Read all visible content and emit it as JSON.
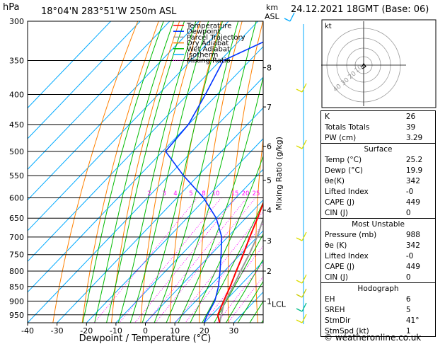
{
  "header": {
    "hpa_label": "hPa",
    "location": "18°04'N 283°51'W 250m ASL",
    "km_label": "km",
    "asl_label": "ASL",
    "date": "24.12.2021 18GMT (Base: 06)"
  },
  "chart_data": {
    "type": "line",
    "chart_kind": "Skew-T log-P",
    "xlabel": "Dewpoint / Temperature (°C)",
    "ylabel_right": "Mixing Ratio (g/kg)",
    "xlim": [
      -40,
      40
    ],
    "x_ticks": [
      -40,
      -30,
      -20,
      -10,
      0,
      10,
      20,
      30
    ],
    "pressure_levels": [
      300,
      350,
      400,
      450,
      500,
      550,
      600,
      650,
      700,
      750,
      800,
      850,
      900,
      950
    ],
    "pressure_range": [
      300,
      980
    ],
    "height_km_ticks": [
      {
        "label": "8",
        "p": 360
      },
      {
        "label": "7",
        "p": 420
      },
      {
        "label": "6",
        "p": 490
      },
      {
        "label": "5",
        "p": 560
      },
      {
        "label": "4",
        "p": 630
      },
      {
        "label": "3",
        "p": 710
      },
      {
        "label": "2",
        "p": 800
      },
      {
        "label": "1",
        "p": 900
      }
    ],
    "lcl": {
      "label": "LCL",
      "p": 910
    },
    "mixing_ratio_labels": [
      "1",
      "2",
      "3",
      "4",
      "5",
      "8",
      "10",
      "15",
      "20",
      "25"
    ],
    "legend": [
      "Temperature",
      "Dewpoint",
      "Parcel Trajectory",
      "Dry Adiabat",
      "Wet Adiabat",
      "Isotherm",
      "Mixing Ratio"
    ],
    "legend_position": "top-left",
    "colors": {
      "temperature": "#ff0000",
      "dewpoint": "#0033ff",
      "parcel": "#999999",
      "dry_adiabat": "#ff8000",
      "wet_adiabat": "#00bb00",
      "isotherm": "#00aaff",
      "mixing_ratio": "#ff00ff"
    },
    "series": [
      {
        "name": "Temperature",
        "points": [
          [
            980,
            25.2
          ],
          [
            950,
            22
          ],
          [
            900,
            19.5
          ],
          [
            850,
            17
          ],
          [
            800,
            14
          ],
          [
            750,
            11
          ],
          [
            700,
            7.5
          ],
          [
            650,
            4
          ],
          [
            600,
            0
          ],
          [
            550,
            -4.5
          ],
          [
            500,
            -9.5
          ],
          [
            450,
            -15.5
          ],
          [
            400,
            -22.5
          ],
          [
            350,
            -30.5
          ],
          [
            300,
            -39.5
          ]
        ]
      },
      {
        "name": "Dewpoint",
        "points": [
          [
            980,
            19.9
          ],
          [
            950,
            18.5
          ],
          [
            900,
            16.5
          ],
          [
            850,
            13
          ],
          [
            800,
            8.5
          ],
          [
            750,
            3.5
          ],
          [
            700,
            -2
          ],
          [
            650,
            -10
          ],
          [
            600,
            -21
          ],
          [
            550,
            -35
          ],
          [
            500,
            -49
          ],
          [
            450,
            -50
          ],
          [
            400,
            -54
          ],
          [
            350,
            -59
          ],
          [
            300,
            -43
          ]
        ]
      },
      {
        "name": "Parcel Trajectory",
        "points": [
          [
            980,
            25.2
          ],
          [
            910,
            20.5
          ],
          [
            850,
            18
          ],
          [
            800,
            15.5
          ],
          [
            750,
            13
          ],
          [
            700,
            10
          ],
          [
            650,
            6
          ],
          [
            600,
            2.5
          ],
          [
            550,
            -2
          ],
          [
            500,
            -7
          ],
          [
            450,
            -12.5
          ],
          [
            400,
            -19
          ],
          [
            350,
            -27
          ],
          [
            300,
            -37
          ]
        ]
      }
    ]
  },
  "hodograph": {
    "label": "kt",
    "rings": [
      "10",
      "20",
      "30",
      "40"
    ]
  },
  "indices": {
    "basic": [
      {
        "k": "K",
        "v": "26"
      },
      {
        "k": "Totals Totals",
        "v": "39"
      },
      {
        "k": "PW (cm)",
        "v": "3.29"
      }
    ],
    "surface_title": "Surface",
    "surface": [
      {
        "k": "Temp (°C)",
        "v": "25.2"
      },
      {
        "k": "Dewp (°C)",
        "v": "19.9"
      },
      {
        "k": "θe(K)",
        "v": "342"
      },
      {
        "k": "Lifted Index",
        "v": "-0"
      },
      {
        "k": "CAPE (J)",
        "v": "449"
      },
      {
        "k": "CIN (J)",
        "v": "0"
      }
    ],
    "unstable_title": "Most Unstable",
    "unstable": [
      {
        "k": "Pressure (mb)",
        "v": "988"
      },
      {
        "k": "θe (K)",
        "v": "342"
      },
      {
        "k": "Lifted Index",
        "v": "-0"
      },
      {
        "k": "CAPE (J)",
        "v": "449"
      },
      {
        "k": "CIN (J)",
        "v": "0"
      }
    ],
    "hodo_title": "Hodograph",
    "hodo": [
      {
        "k": "EH",
        "v": "6"
      },
      {
        "k": "SREH",
        "v": "5"
      },
      {
        "k": "StmDir",
        "v": "41°"
      },
      {
        "k": "StmSpd (kt)",
        "v": "1"
      }
    ]
  },
  "footer": {
    "copyright": "© weatheronline.co.uk"
  }
}
